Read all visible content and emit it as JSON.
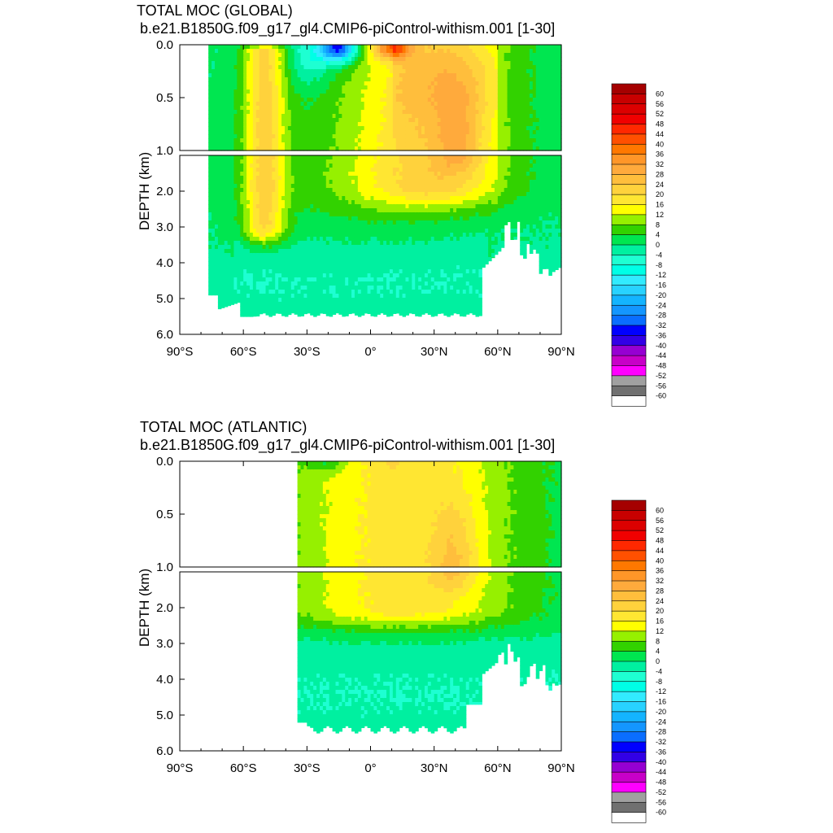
{
  "chart_data": [
    {
      "type": "heatmap",
      "title": "TOTAL MOC (GLOBAL)",
      "subtitle": "b.e21.B1850G.f09_g17_gl4.CMIP6-piControl-withism.001 [1-30]",
      "xlabel": "",
      "ylabel": "DEPTH (km)",
      "x_ticks": [
        "90°S",
        "60°S",
        "30°S",
        "0°",
        "30°N",
        "60°N",
        "90°N"
      ],
      "y_ticks_upper": [
        "0.0",
        "0.5",
        "1.0"
      ],
      "y_ticks_lower": [
        "2.0",
        "3.0",
        "4.0",
        "5.0",
        "6.0"
      ],
      "xlim": [
        -90,
        90
      ],
      "ylim_upper": [
        0,
        1
      ],
      "ylim_lower": [
        1,
        6
      ],
      "basin": "global",
      "features": [
        {
          "lat": -50,
          "depth_top": 0.05,
          "depth_bottom": 2.9,
          "lat_width": 8,
          "value": 20
        },
        {
          "lat": -15,
          "depth_top": 0.0,
          "depth_bottom": 0.25,
          "lat_width": 18,
          "value": -40
        },
        {
          "lat": 10,
          "depth_top": 0.0,
          "depth_bottom": 0.15,
          "lat_width": 12,
          "value": 28
        },
        {
          "lat": 40,
          "depth_top": 0.4,
          "depth_bottom": 1.6,
          "lat_width": 12,
          "value": 24
        }
      ]
    },
    {
      "type": "heatmap",
      "title": "TOTAL MOC (ATLANTIC)",
      "subtitle": "b.e21.B1850G.f09_g17_gl4.CMIP6-piControl-withism.001 [1-30]",
      "xlabel": "",
      "ylabel": "DEPTH (km)",
      "x_ticks": [
        "90°S",
        "60°S",
        "30°S",
        "0°",
        "30°N",
        "60°N",
        "90°N"
      ],
      "y_ticks_upper": [
        "0.0",
        "0.5",
        "1.0"
      ],
      "y_ticks_lower": [
        "2.0",
        "3.0",
        "4.0",
        "5.0",
        "6.0"
      ],
      "xlim": [
        -90,
        90
      ],
      "ylim_upper": [
        0,
        1
      ],
      "ylim_lower": [
        1,
        6
      ],
      "basin": "atlantic",
      "features": [
        {
          "lat": 40,
          "depth_top": 0.5,
          "depth_bottom": 1.5,
          "lat_width": 10,
          "value": 24
        }
      ]
    }
  ],
  "colorbar": {
    "labels": [
      "60",
      "56",
      "52",
      "48",
      "44",
      "40",
      "36",
      "32",
      "28",
      "24",
      "20",
      "16",
      "12",
      "8",
      "4",
      "0",
      "-4",
      "-8",
      "-12",
      "-16",
      "-20",
      "-24",
      "-28",
      "-32",
      "-36",
      "-40",
      "-44",
      "-48",
      "-52",
      "-56",
      "-60"
    ],
    "colors": [
      "#a50000",
      "#c80000",
      "#dc0000",
      "#f00000",
      "#ff2800",
      "#ff5000",
      "#ff7800",
      "#ff9628",
      "#ffaa3c",
      "#ffbe3c",
      "#ffd23c",
      "#ffe632",
      "#ffff00",
      "#96f000",
      "#32d200",
      "#00e650",
      "#00f0a0",
      "#1effd2",
      "#00ffe6",
      "#32ebff",
      "#28d2ff",
      "#14b4ff",
      "#1496ff",
      "#0a6eff",
      "#0000ff",
      "#3200e6",
      "#9600d2",
      "#c800c8",
      "#ff00ff",
      "#a0a0a0",
      "#707070",
      "#ffffff"
    ]
  }
}
